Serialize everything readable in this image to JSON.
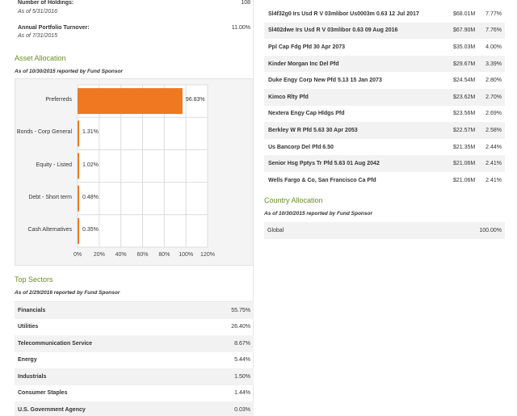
{
  "summary": {
    "holdings_label": "Number of Holdings:",
    "holdings_value": "108",
    "holdings_asof": "As of 5/31/2016",
    "turnover_label": "Annual Portfolio Turnover:",
    "turnover_value": "11.00%",
    "turnover_asof": "As of 7/31/2015"
  },
  "asset_allocation": {
    "title": "Asset Allocation",
    "subtitle": "As of 10/30/2015 reported by Fund Sponsor"
  },
  "chart_data": {
    "type": "bar",
    "orientation": "horizontal",
    "categories": [
      "Preferreds",
      "Bonds - Corp General",
      "Equity - Listed",
      "Debt - Short term",
      "Cash Alternatives"
    ],
    "values": [
      96.83,
      1.31,
      1.02,
      0.48,
      0.35
    ],
    "data_labels": [
      "96.83%",
      "1.31%",
      "1.02%",
      "0.48%",
      "0.35%"
    ],
    "xlim": [
      0,
      120
    ],
    "xticks": [
      "0%",
      "20%",
      "40%",
      "60%",
      "80%",
      "100%",
      "120%"
    ],
    "grid": true,
    "bar_color": "#f07820"
  },
  "top_sectors": {
    "title": "Top Sectors",
    "subtitle": "As of 2/29/2016 reported by Fund Sponsor",
    "rows": [
      {
        "name": "Financials",
        "value": "55.75%"
      },
      {
        "name": "Utilities",
        "value": "26.40%"
      },
      {
        "name": "Telecommunication Service",
        "value": "8.67%"
      },
      {
        "name": "Energy",
        "value": "5.44%"
      },
      {
        "name": "Industrials",
        "value": "1.50%"
      },
      {
        "name": "Consumer Staples",
        "value": "1.44%"
      },
      {
        "name": "U.S. Government Agency",
        "value": "0.03%"
      }
    ]
  },
  "top_holdings": {
    "rows": [
      {
        "name": "Sl4f32g0 Irs Usd R V 03mlibor Us0003m 0.63 12 Jul 2017",
        "amount": "$68.01M",
        "pct": "7.77%"
      },
      {
        "name": "Sl402dwe Irs Usd R V 03mlibor 0.63 09 Aug 2016",
        "amount": "$67.90M",
        "pct": "7.76%"
      },
      {
        "name": "Ppl Cap Fdg Pfd 30 Apr 2073",
        "amount": "$35.03M",
        "pct": "4.00%"
      },
      {
        "name": "Kinder Morgan Inc Del Pfd",
        "amount": "$29.67M",
        "pct": "3.39%"
      },
      {
        "name": "Duke Engy Corp New Pfd 5.13 15 Jan 2073",
        "amount": "$24.54M",
        "pct": "2.80%"
      },
      {
        "name": "Kimco Rlty Pfd",
        "amount": "$23.62M",
        "pct": "2.70%"
      },
      {
        "name": "Nextera Engy Cap Hldgs Pfd",
        "amount": "$23.56M",
        "pct": "2.69%"
      },
      {
        "name": "Berkley W R Pfd 5.63 30 Apr 2053",
        "amount": "$22.57M",
        "pct": "2.58%"
      },
      {
        "name": "Us Bancorp Del Pfd 6.50",
        "amount": "$21.35M",
        "pct": "2.44%"
      },
      {
        "name": "Senior Hsg Pptys Tr Pfd 5.63 01 Aug 2042",
        "amount": "$21.06M",
        "pct": "2.41%"
      },
      {
        "name": "Wells Fargo & Co, San Francisco Ca Pfd",
        "amount": "$21.06M",
        "pct": "2.41%"
      }
    ]
  },
  "country_allocation": {
    "title": "Country Allocation",
    "subtitle": "As of 10/30/2015 reported by Fund Sponsor",
    "rows": [
      {
        "name": "Global",
        "value": "100.00%"
      }
    ]
  }
}
